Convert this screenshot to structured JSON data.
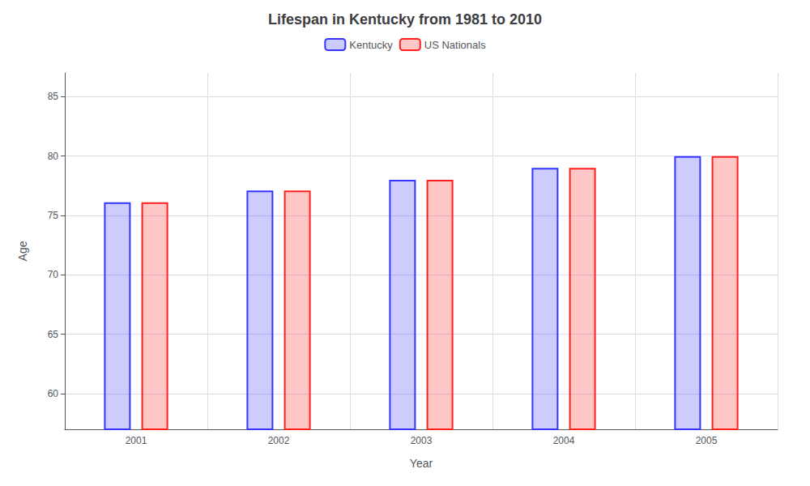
{
  "chart_data": {
    "type": "bar",
    "title": "Lifespan in Kentucky from 1981 to 2010",
    "xlabel": "Year",
    "ylabel": "Age",
    "categories": [
      "2001",
      "2002",
      "2003",
      "2004",
      "2005"
    ],
    "series": [
      {
        "name": "Kentucky",
        "color": "#3535ff",
        "values": [
          76.1,
          77.1,
          78.0,
          79.0,
          80.0
        ]
      },
      {
        "name": "US Nationals",
        "color": "#ff2020",
        "values": [
          76.1,
          77.1,
          78.0,
          79.0,
          80.0
        ]
      }
    ],
    "ylim": [
      57,
      87
    ],
    "yticks": [
      60,
      65,
      70,
      75,
      80,
      85
    ],
    "grid": true,
    "legend": "top"
  }
}
